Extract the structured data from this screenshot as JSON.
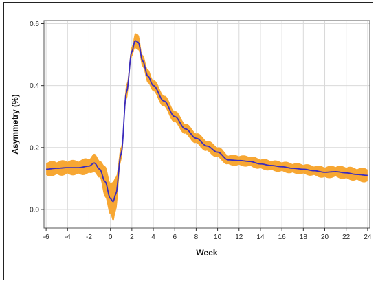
{
  "chart_data": {
    "type": "line",
    "xlabel": "Week",
    "ylabel": "Asymmetry (%)",
    "xlim": [
      -6.2,
      24.2
    ],
    "ylim": [
      -0.06,
      0.61
    ],
    "x_ticks": [
      -6,
      -4,
      -2,
      0,
      2,
      4,
      6,
      8,
      10,
      12,
      14,
      16,
      18,
      20,
      22,
      24
    ],
    "y_ticks": [
      0.0,
      0.2,
      0.4,
      0.6
    ],
    "x_tick_labels": [
      "-6",
      "-4",
      "-2",
      "0",
      "2",
      "4",
      "6",
      "8",
      "10",
      "12",
      "14",
      "16",
      "18",
      "20",
      "22",
      "24"
    ],
    "y_tick_labels": [
      "0.0",
      "0.2",
      "0.4",
      "0.6"
    ],
    "grid": true,
    "colors": {
      "line": "#3a2bbf",
      "band": "#f7a733",
      "grid": "#d9d9d9"
    },
    "series": [
      {
        "x": [
          -6,
          -5,
          -4,
          -3,
          -2,
          -1.5,
          -1,
          -0.5,
          0,
          0.25,
          0.5,
          1,
          1.5,
          2,
          2.3,
          2.6,
          3,
          3.5,
          4,
          5,
          6,
          7,
          8,
          9,
          10,
          11,
          12,
          13,
          14,
          15,
          16,
          17,
          18,
          19,
          20,
          21,
          22,
          23,
          24
        ],
        "y": [
          0.13,
          0.133,
          0.135,
          0.135,
          0.14,
          0.15,
          0.13,
          0.09,
          0.035,
          0.025,
          0.05,
          0.18,
          0.38,
          0.51,
          0.545,
          0.54,
          0.48,
          0.43,
          0.4,
          0.35,
          0.3,
          0.26,
          0.23,
          0.205,
          0.185,
          0.16,
          0.158,
          0.155,
          0.147,
          0.142,
          0.138,
          0.133,
          0.13,
          0.125,
          0.12,
          0.122,
          0.118,
          0.113,
          0.11
        ],
        "band_halfwidth": [
          0.025,
          0.025,
          0.025,
          0.025,
          0.028,
          0.03,
          0.035,
          0.05,
          0.065,
          0.07,
          0.055,
          0.03,
          0.025,
          0.022,
          0.025,
          0.025,
          0.025,
          0.022,
          0.022,
          0.022,
          0.022,
          0.02,
          0.02,
          0.02,
          0.02,
          0.018,
          0.018,
          0.018,
          0.018,
          0.018,
          0.018,
          0.018,
          0.018,
          0.018,
          0.02,
          0.02,
          0.022,
          0.022,
          0.025
        ]
      }
    ]
  }
}
